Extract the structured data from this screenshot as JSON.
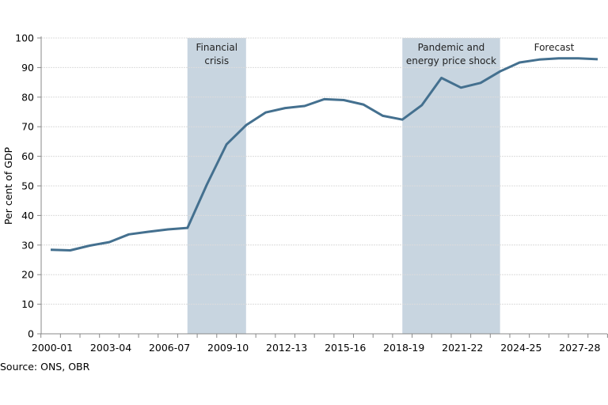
{
  "chart_data": {
    "type": "line",
    "title": "",
    "ylabel": "Per cent of GDP",
    "xlabel": "",
    "ylim": [
      0,
      100
    ],
    "yticks": [
      0,
      10,
      20,
      30,
      40,
      50,
      60,
      70,
      80,
      90,
      100
    ],
    "grid": true,
    "x": [
      "2000-01",
      "2001-02",
      "2002-03",
      "2003-04",
      "2004-05",
      "2005-06",
      "2006-07",
      "2007-08",
      "2008-09",
      "2009-10",
      "2010-11",
      "2011-12",
      "2012-13",
      "2013-14",
      "2014-15",
      "2015-16",
      "2016-17",
      "2017-18",
      "2018-19",
      "2019-20",
      "2020-21",
      "2021-22",
      "2022-23",
      "2023-24",
      "2024-25",
      "2025-26",
      "2026-27",
      "2027-28",
      "2028-29"
    ],
    "xtick_labels": [
      "2000-01",
      "2003-04",
      "2006-07",
      "2009-10",
      "2012-13",
      "2015-16",
      "2018-19",
      "2021-22",
      "2024-25",
      "2027-28"
    ],
    "series": [
      {
        "values": [
          28.4,
          28.2,
          29.8,
          31.0,
          33.6,
          34.5,
          35.3,
          35.8,
          50.5,
          64.0,
          70.5,
          74.8,
          76.3,
          77.0,
          79.3,
          79.0,
          77.5,
          73.7,
          72.4,
          77.3,
          86.5,
          83.2,
          84.8,
          88.7,
          91.7,
          92.7,
          93.1,
          93.1,
          92.8
        ],
        "color": "#44708f"
      }
    ],
    "shaded_regions": [
      {
        "label_lines": [
          "Financial",
          "crisis"
        ],
        "from": "2007-08",
        "to": "2010-11",
        "color": "#c8d5e0"
      },
      {
        "label_lines": [
          "Pandemic and",
          "energy price shock"
        ],
        "from": "2018-19",
        "to": "2023-24",
        "color": "#c8d5e0"
      }
    ],
    "annotations": [
      {
        "text": "Forecast"
      }
    ],
    "source": "Source: ONS, OBR"
  }
}
